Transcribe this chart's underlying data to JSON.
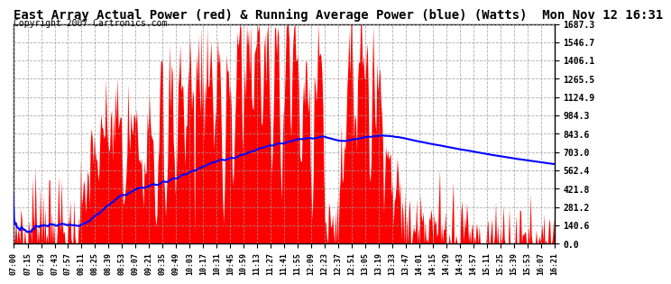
{
  "title": "East Array Actual Power (red) & Running Average Power (blue) (Watts)  Mon Nov 12 16:31",
  "copyright": "Copyright 2007 Cartronics.com",
  "ylabel_right_values": [
    0.0,
    140.6,
    281.2,
    421.8,
    562.4,
    703.0,
    843.6,
    984.3,
    1124.9,
    1265.5,
    1406.1,
    1546.7,
    1687.3
  ],
  "ymax": 1687.3,
  "ymin": 0.0,
  "actual_color": "#FF0000",
  "average_color": "#0000FF",
  "background_color": "#FFFFFF",
  "grid_color": "#999999",
  "title_fontsize": 10,
  "copyright_fontsize": 7,
  "tick_times": [
    "07:00",
    "07:15",
    "07:29",
    "07:43",
    "07:57",
    "08:11",
    "08:25",
    "08:39",
    "08:53",
    "09:07",
    "09:21",
    "09:35",
    "09:49",
    "10:03",
    "10:17",
    "10:31",
    "10:45",
    "10:59",
    "11:13",
    "11:27",
    "11:41",
    "11:55",
    "12:09",
    "12:23",
    "12:37",
    "12:51",
    "13:05",
    "13:19",
    "13:33",
    "13:47",
    "14:01",
    "14:15",
    "14:29",
    "14:43",
    "14:57",
    "15:11",
    "15:25",
    "15:39",
    "15:53",
    "16:07",
    "16:21"
  ]
}
